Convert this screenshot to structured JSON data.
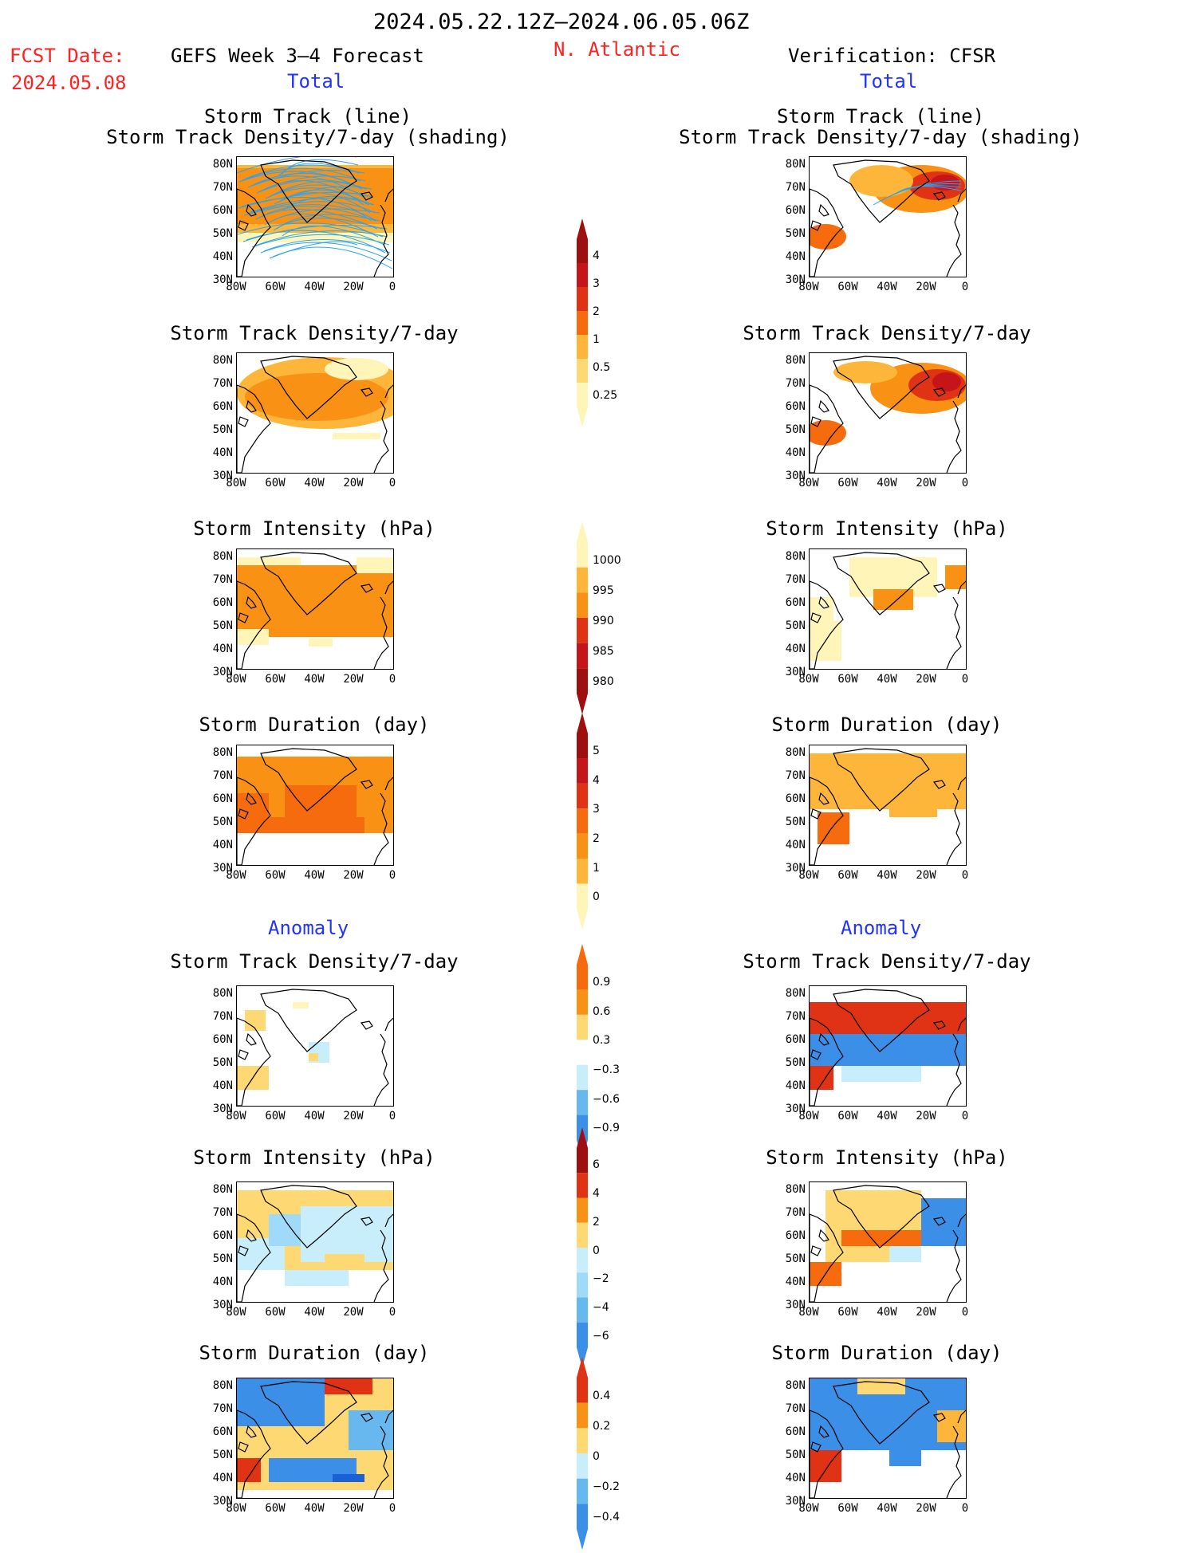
{
  "header": {
    "date_range": "2024.05.22.12Z–2024.06.05.06Z",
    "fcst_label": "FCST Date:",
    "fcst_date": "2024.05.08",
    "left_title": "GEFS Week 3–4 Forecast",
    "region": "N. Atlantic",
    "right_title": "Verification: CFSR",
    "total_label": "Total",
    "anomaly_label": "Anomaly"
  },
  "axes": {
    "lat_labels": [
      "80N",
      "70N",
      "60N",
      "50N",
      "40N",
      "30N"
    ],
    "lon_labels": [
      "80W",
      "60W",
      "40W",
      "20W",
      "0"
    ]
  },
  "panels": {
    "track_line_1": "Storm Track (line)",
    "track_line_2": "Storm Track Density/7-day (shading)",
    "density": "Storm Track Density/7-day",
    "intensity": "Storm Intensity (hPa)",
    "duration": "Storm Duration (day)"
  },
  "colorbars": {
    "density_total": [
      "4",
      "3",
      "2",
      "1",
      "0.5",
      "0.25"
    ],
    "intensity_total": [
      "1000",
      "995",
      "990",
      "985",
      "980"
    ],
    "duration_total": [
      "5",
      "4",
      "3",
      "2",
      "1",
      "0"
    ],
    "density_anom": [
      "0.9",
      "0.6",
      "0.3",
      "−0.3",
      "−0.6",
      "−0.9"
    ],
    "intensity_anom": [
      "6",
      "4",
      "2",
      "0",
      "−2",
      "−4",
      "−6"
    ],
    "duration_anom": [
      "0.4",
      "0.2",
      "0",
      "−0.2",
      "−0.4"
    ]
  },
  "colors": {
    "warm": [
      "#fff5b8",
      "#fed872",
      "#fdb63a",
      "#f99214",
      "#f56b0e",
      "#e03214",
      "#c5141a",
      "#9e0f0f"
    ],
    "cool": [
      "#c8eefb",
      "#9fdaf8",
      "#68b8f0",
      "#3b8fe6",
      "#1a60d6"
    ],
    "red_text": "#ff2222",
    "blue_text": "#2233ff"
  }
}
